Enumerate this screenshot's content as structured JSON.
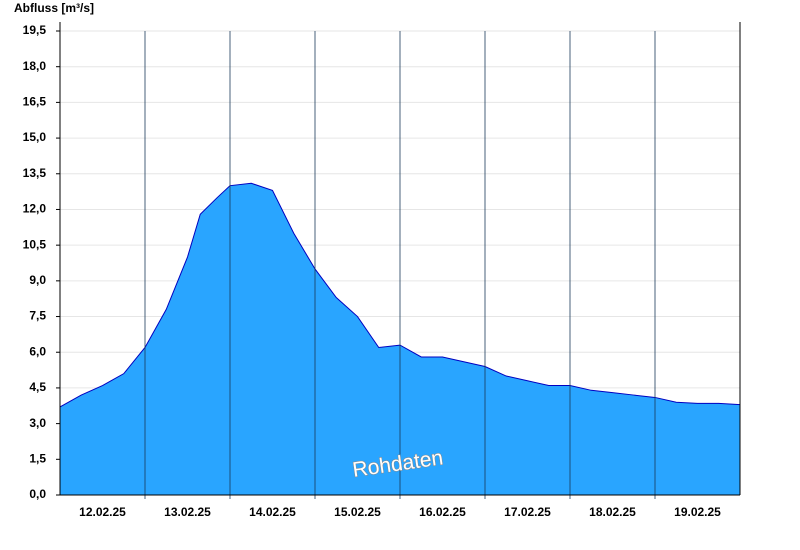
{
  "chart_data": {
    "type": "area",
    "title": "Abfluss [m³/s]",
    "annotation": "Rohdaten",
    "color": "#29a5ff",
    "line_color": "#0000c0",
    "grid": true,
    "xlim": [
      0,
      8
    ],
    "xticks": [
      {
        "value": 0.5,
        "label": "12.02.25"
      },
      {
        "value": 1.5,
        "label": "13.02.25"
      },
      {
        "value": 2.5,
        "label": "14.02.25"
      },
      {
        "value": 3.5,
        "label": "15.02.25"
      },
      {
        "value": 4.5,
        "label": "16.02.25"
      },
      {
        "value": 5.5,
        "label": "17.02.25"
      },
      {
        "value": 6.5,
        "label": "18.02.25"
      },
      {
        "value": 7.5,
        "label": "19.02.25"
      }
    ],
    "ylim": [
      0,
      19.5
    ],
    "yticks": [
      {
        "value": 0,
        "label": "0,0"
      },
      {
        "value": 1.5,
        "label": "1,5"
      },
      {
        "value": 3,
        "label": "3,0"
      },
      {
        "value": 4.5,
        "label": "4,5"
      },
      {
        "value": 6,
        "label": "6,0"
      },
      {
        "value": 7.5,
        "label": "7,5"
      },
      {
        "value": 9,
        "label": "9,0"
      },
      {
        "value": 10.5,
        "label": "10,5"
      },
      {
        "value": 12,
        "label": "12,0"
      },
      {
        "value": 13.5,
        "label": "13,5"
      },
      {
        "value": 15,
        "label": "15,0"
      },
      {
        "value": 16.5,
        "label": "16,5"
      },
      {
        "value": 18,
        "label": "18,0"
      },
      {
        "value": 19.5,
        "label": "19,5"
      }
    ],
    "x": [
      0,
      0.25,
      0.5,
      0.75,
      1,
      1.25,
      1.5,
      1.65,
      1.85,
      2,
      2.25,
      2.5,
      2.75,
      3,
      3.25,
      3.5,
      3.75,
      4,
      4.25,
      4.5,
      4.75,
      5,
      5.25,
      5.5,
      5.75,
      6,
      6.25,
      6.5,
      6.75,
      7,
      7.25,
      7.5,
      7.75,
      8
    ],
    "values": [
      3.7,
      4.2,
      4.6,
      5.1,
      6.2,
      7.8,
      10.0,
      11.8,
      12.5,
      13.0,
      13.1,
      12.8,
      11.0,
      9.5,
      8.3,
      7.5,
      6.2,
      6.3,
      5.8,
      5.8,
      5.6,
      5.4,
      5.0,
      4.8,
      4.6,
      4.6,
      4.4,
      4.3,
      4.2,
      4.1,
      3.9,
      3.85,
      3.85,
      3.8
    ]
  }
}
